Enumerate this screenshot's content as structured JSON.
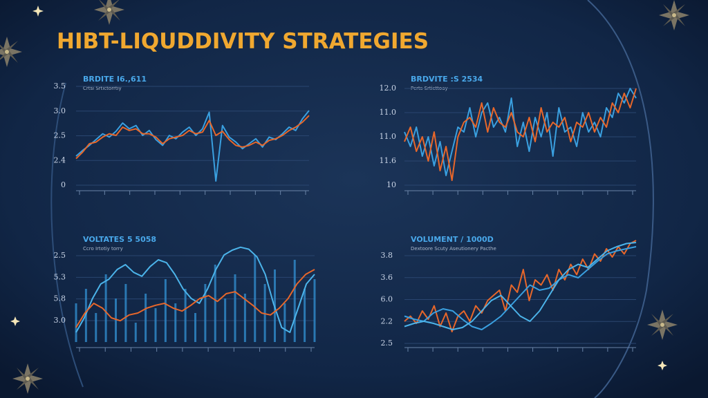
{
  "title": "HIBT-LIQUDDIVITY STRATEGIES",
  "panels": [
    {
      "title": "BRDITE I6.,611",
      "subtitle": "Crtsi Srtictorrtiy",
      "y_labels": [
        "3.5",
        "3.0",
        "2.5",
        "2.4",
        "0"
      ],
      "series": [
        {
          "style": "line",
          "color": "#3aa0e0",
          "values": [
            35,
            42,
            48,
            55,
            62,
            58,
            65,
            75,
            68,
            72,
            60,
            66,
            55,
            48,
            60,
            56,
            64,
            70,
            60,
            68,
            88,
            5,
            72,
            58,
            52,
            44,
            50,
            56,
            46,
            58,
            55,
            62,
            70,
            66,
            80,
            90
          ]
        },
        {
          "style": "line",
          "color": "#e8672a",
          "values": [
            32,
            40,
            50,
            52,
            58,
            62,
            60,
            70,
            66,
            68,
            62,
            62,
            58,
            50,
            56,
            58,
            60,
            66,
            62,
            64,
            78,
            60,
            65,
            55,
            48,
            46,
            48,
            52,
            48,
            54,
            56,
            60,
            66,
            70,
            76,
            84
          ]
        }
      ]
    },
    {
      "title": "BRDVITE :S 2534",
      "subtitle": "Pcrts Srticttoay",
      "y_labels": [
        "12.0",
        "11.0",
        "11.0",
        "11.6",
        "10"
      ],
      "series": [
        {
          "style": "line",
          "color": "#3aa0e0",
          "values": [
            55,
            40,
            60,
            30,
            50,
            20,
            45,
            10,
            35,
            60,
            55,
            80,
            50,
            75,
            85,
            60,
            70,
            55,
            90,
            40,
            65,
            35,
            70,
            50,
            75,
            30,
            80,
            55,
            60,
            40,
            75,
            55,
            65,
            50,
            80,
            70,
            95,
            85,
            100,
            90
          ]
        },
        {
          "style": "line",
          "color": "#e8672a",
          "values": [
            45,
            60,
            35,
            50,
            25,
            55,
            15,
            40,
            5,
            50,
            65,
            70,
            60,
            85,
            55,
            80,
            65,
            60,
            75,
            55,
            50,
            70,
            45,
            80,
            55,
            65,
            60,
            70,
            45,
            65,
            60,
            75,
            55,
            70,
            60,
            85,
            75,
            95,
            80,
            100
          ]
        }
      ]
    },
    {
      "title": "VOLTATES 5 5058",
      "subtitle": "Ccro Irtotiy torry",
      "y_labels": [
        "2.5",
        "5.3",
        "5.8",
        "3.0"
      ],
      "series": [
        {
          "style": "bars",
          "color": "#2f86c4",
          "values": [
            40,
            55,
            30,
            70,
            45,
            60,
            20,
            50,
            35,
            65,
            40,
            55,
            30,
            60,
            80,
            45,
            70,
            50,
            90,
            60,
            75,
            40,
            85,
            55,
            65
          ]
        },
        {
          "style": "line",
          "color": "#4cb4ea",
          "values": [
            10,
            25,
            45,
            60,
            65,
            75,
            80,
            72,
            68,
            78,
            85,
            82,
            70,
            55,
            45,
            40,
            55,
            75,
            90,
            95,
            98,
            96,
            88,
            70,
            40,
            15,
            10,
            35,
            60,
            70
          ]
        },
        {
          "style": "line",
          "color": "#e8672a",
          "values": [
            15,
            30,
            40,
            35,
            25,
            22,
            28,
            30,
            35,
            38,
            40,
            35,
            32,
            38,
            45,
            48,
            42,
            50,
            52,
            45,
            38,
            30,
            28,
            35,
            45,
            60,
            70,
            75
          ]
        }
      ]
    },
    {
      "title": "VOLUMENT / 1000D",
      "subtitle": "Dextoore Scuty Aseutionery Pacthe",
      "y_labels": [
        "3.8",
        "3.6",
        "6.0",
        "2.2",
        "2.5"
      ],
      "series": [
        {
          "style": "line",
          "color": "#e8672a",
          "values": [
            20,
            25,
            18,
            30,
            22,
            35,
            15,
            28,
            10,
            25,
            30,
            20,
            35,
            28,
            40,
            45,
            50,
            30,
            55,
            48,
            70,
            40,
            60,
            55,
            65,
            50,
            70,
            60,
            75,
            65,
            80,
            70,
            85,
            78,
            90,
            82,
            92,
            85,
            95,
            98
          ]
        },
        {
          "style": "line",
          "color": "#3aa0e0",
          "values": [
            25,
            22,
            20,
            28,
            32,
            30,
            22,
            15,
            12,
            18,
            25,
            35,
            45,
            55,
            50,
            52,
            60,
            65,
            62,
            70,
            78,
            85,
            88,
            90,
            92
          ]
        },
        {
          "style": "line",
          "color": "#4cb4ea",
          "values": [
            15,
            18,
            20,
            18,
            15,
            12,
            14,
            20,
            30,
            40,
            45,
            35,
            25,
            20,
            30,
            45,
            60,
            70,
            75,
            72,
            80,
            88,
            92,
            95,
            96
          ]
        }
      ]
    }
  ]
}
